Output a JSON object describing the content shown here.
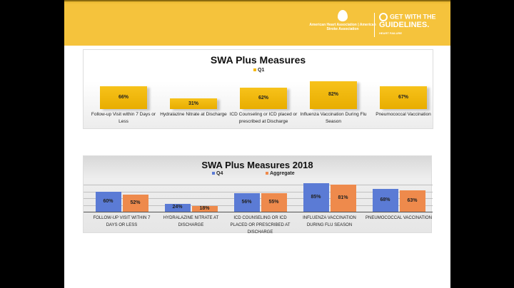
{
  "header": {
    "logo_aha": "American Heart Association | American Stroke Association",
    "logo_gwtg_line1": "GET WITH THE",
    "logo_gwtg_line2": "GUIDELINES.",
    "logo_gwtg_line3": "HEART FAILURE"
  },
  "chart_data": [
    {
      "type": "bar",
      "title": "SWA Plus Measures",
      "categories": [
        "Follow-up Visit within 7 Days or Less",
        "Hydralazine Nitrate at Discharge",
        "ICD Counseling or ICD placed or prescribed at Discharge",
        "Influenza Vaccination During Flu Season",
        "Pneumococcal Vaccination"
      ],
      "series": [
        {
          "name": "Q1",
          "values": [
            66,
            31,
            62,
            82,
            67
          ],
          "labels": [
            "66%",
            "31%",
            "62%",
            "82%",
            "67%"
          ],
          "color": "#f5b800"
        }
      ],
      "ylim": [
        0,
        100
      ],
      "legend": "top-center"
    },
    {
      "type": "bar",
      "title": "SWA Plus Measures 2018",
      "categories": [
        "FOLLOW-UP VISIT WITHIN 7 DAYS OR LESS",
        "HYDRALAZINE NITRATE AT DISCHARGE",
        "ICD COUNSELING OR ICD PLACED OR PRESCRIBED AT DISCHARGE",
        "INFLUENZA VACCINATION DURING FLU SEASON",
        "PNEUMOCOCCAL VACCINATION"
      ],
      "series": [
        {
          "name": "Q4",
          "values": [
            60,
            24,
            56,
            85,
            68
          ],
          "labels": [
            "60%",
            "24%",
            "56%",
            "85%",
            "68%"
          ],
          "color": "#5b7bd5"
        },
        {
          "name": "Aggregate",
          "values": [
            52,
            18,
            55,
            81,
            63
          ],
          "labels": [
            "52%",
            "18%",
            "55%",
            "81%",
            "63%"
          ],
          "color": "#ee8a4c"
        }
      ],
      "ylim": [
        0,
        100
      ],
      "legend": "top-center"
    }
  ]
}
